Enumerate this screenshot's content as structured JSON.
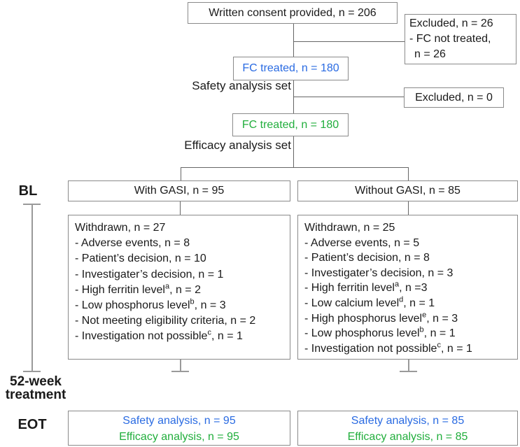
{
  "colors": {
    "safety_text": "#2a6be2",
    "efficacy_text": "#21ae3c",
    "flow_lines": "#666666",
    "timeline_lines": "#9a9a9a",
    "box_border": "#8a8a8a"
  },
  "flow": {
    "consent_box": "Written consent provided, n = 206",
    "excluded_top": {
      "line1": "Excluded, n = 26",
      "line2": "- FC not treated,",
      "line3": "n = 26"
    },
    "fc_safety_box": "FC treated, n = 180",
    "safety_set_label": "Safety analysis set",
    "excluded_mid": "Excluded, n = 0",
    "fc_efficacy_box": "FC treated, n = 180",
    "efficacy_set_label": "Efficacy analysis set",
    "with_gasi_box": "With GASI, n = 95",
    "without_gasi_box": "Without GASI, n = 85",
    "bl_label": "BL",
    "week_label_line1": "52-week",
    "week_label_line2": "treatment",
    "eot_label": "EOT",
    "withdrawn_left": {
      "title": "Withdrawn, n = 27",
      "items": [
        "- Adverse events, n = 8",
        "- Patient’s decision, n = 10",
        "- Investigater’s decision, n = 1",
        "- High ferritin level^a, n = 2",
        "- Low phosphorus level^b, n = 3",
        "- Not meeting eligibility criteria, n = 2",
        "- Investigation not possible^c, n = 1"
      ]
    },
    "withdrawn_right": {
      "title": "Withdrawn, n = 25",
      "items": [
        "- Adverse events, n = 5",
        "- Patient’s decision, n = 8",
        "- Investigater’s decision, n = 3",
        "- High ferritin level^a, n =3",
        "- Low calcium level^d, n = 1",
        "- High phosphorus level^e, n = 3",
        "- Low phosphorus level^b, n = 1",
        "- Investigation not possible^c, n = 1"
      ]
    },
    "eot_left": {
      "safety": "Safety analysis, n = 95",
      "efficacy": "Efficacy analysis, n = 95"
    },
    "eot_right": {
      "safety": "Safety analysis, n = 85",
      "efficacy": "Efficacy analysis, n = 85"
    }
  }
}
